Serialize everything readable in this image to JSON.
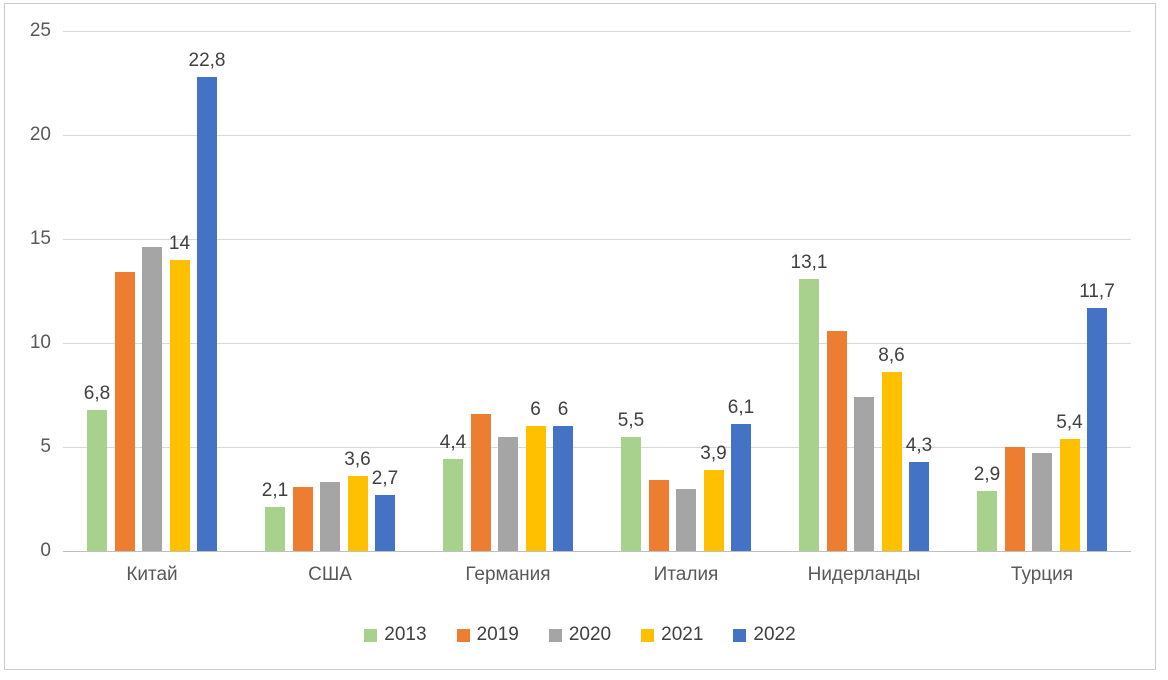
{
  "chart_data": {
    "type": "bar",
    "title": "",
    "categories": [
      "Китай",
      "США",
      "Германия",
      "Италия",
      "Нидерланды",
      "Турция"
    ],
    "series": [
      {
        "name": "2013",
        "color": "#A9D18E",
        "values": [
          6.8,
          2.1,
          4.4,
          5.5,
          13.1,
          2.9
        ],
        "data_labels": [
          "6,8",
          "2,1",
          "4,4",
          "5,5",
          "13,1",
          "2,9"
        ]
      },
      {
        "name": "2019",
        "color": "#ED7D31",
        "values": [
          13.4,
          3.1,
          6.6,
          3.4,
          10.6,
          5.0
        ],
        "data_labels": null
      },
      {
        "name": "2020",
        "color": "#A5A5A5",
        "values": [
          14.6,
          3.3,
          5.5,
          3.0,
          7.4,
          4.7
        ],
        "data_labels": null
      },
      {
        "name": "2021",
        "color": "#FFC000",
        "values": [
          14,
          3.6,
          6,
          3.9,
          8.6,
          5.4
        ],
        "data_labels": [
          "14",
          "3,6",
          "6",
          "3,9",
          "8,6",
          "5,4"
        ]
      },
      {
        "name": "2022",
        "color": "#4472C4",
        "values": [
          22.8,
          2.7,
          6,
          6.1,
          4.3,
          11.7
        ],
        "data_labels": [
          "22,8",
          "2,7",
          "6",
          "6,1",
          "4,3",
          "11,7"
        ]
      }
    ],
    "y_ticks": [
      "0",
      "5",
      "10",
      "15",
      "20",
      "25"
    ],
    "ylim": [
      0,
      25
    ],
    "grid": true,
    "legend_position": "bottom",
    "decimal_separator": ","
  },
  "colors": {
    "background": "#FFFFFF",
    "frame_border": "#C9CCD1",
    "gridline": "#D9D9D9",
    "axis_line": "#BFBFBF",
    "axis_text": "#595959",
    "data_label_text": "#404040"
  }
}
